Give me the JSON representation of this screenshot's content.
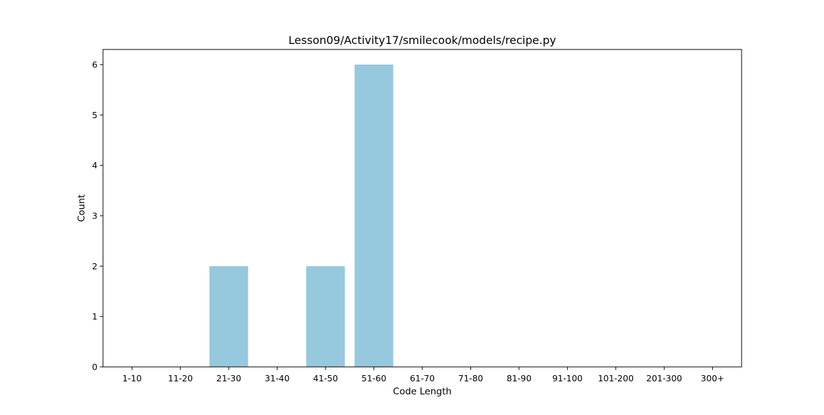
{
  "chart_data": {
    "type": "bar",
    "title": "Lesson09/Activity17/smilecook/models/recipe.py",
    "xlabel": "Code Length",
    "ylabel": "Count",
    "categories": [
      "1-10",
      "11-20",
      "21-30",
      "31-40",
      "41-50",
      "51-60",
      "61-70",
      "71-80",
      "81-90",
      "91-100",
      "101-200",
      "201-300",
      "300+"
    ],
    "values": [
      0,
      0,
      2,
      0,
      2,
      6,
      0,
      0,
      0,
      0,
      0,
      0,
      0
    ],
    "yticks": [
      0,
      1,
      2,
      3,
      4,
      5,
      6
    ],
    "ylim": [
      0,
      6.3
    ],
    "grid": false,
    "bar_color": "#96c9dd"
  }
}
